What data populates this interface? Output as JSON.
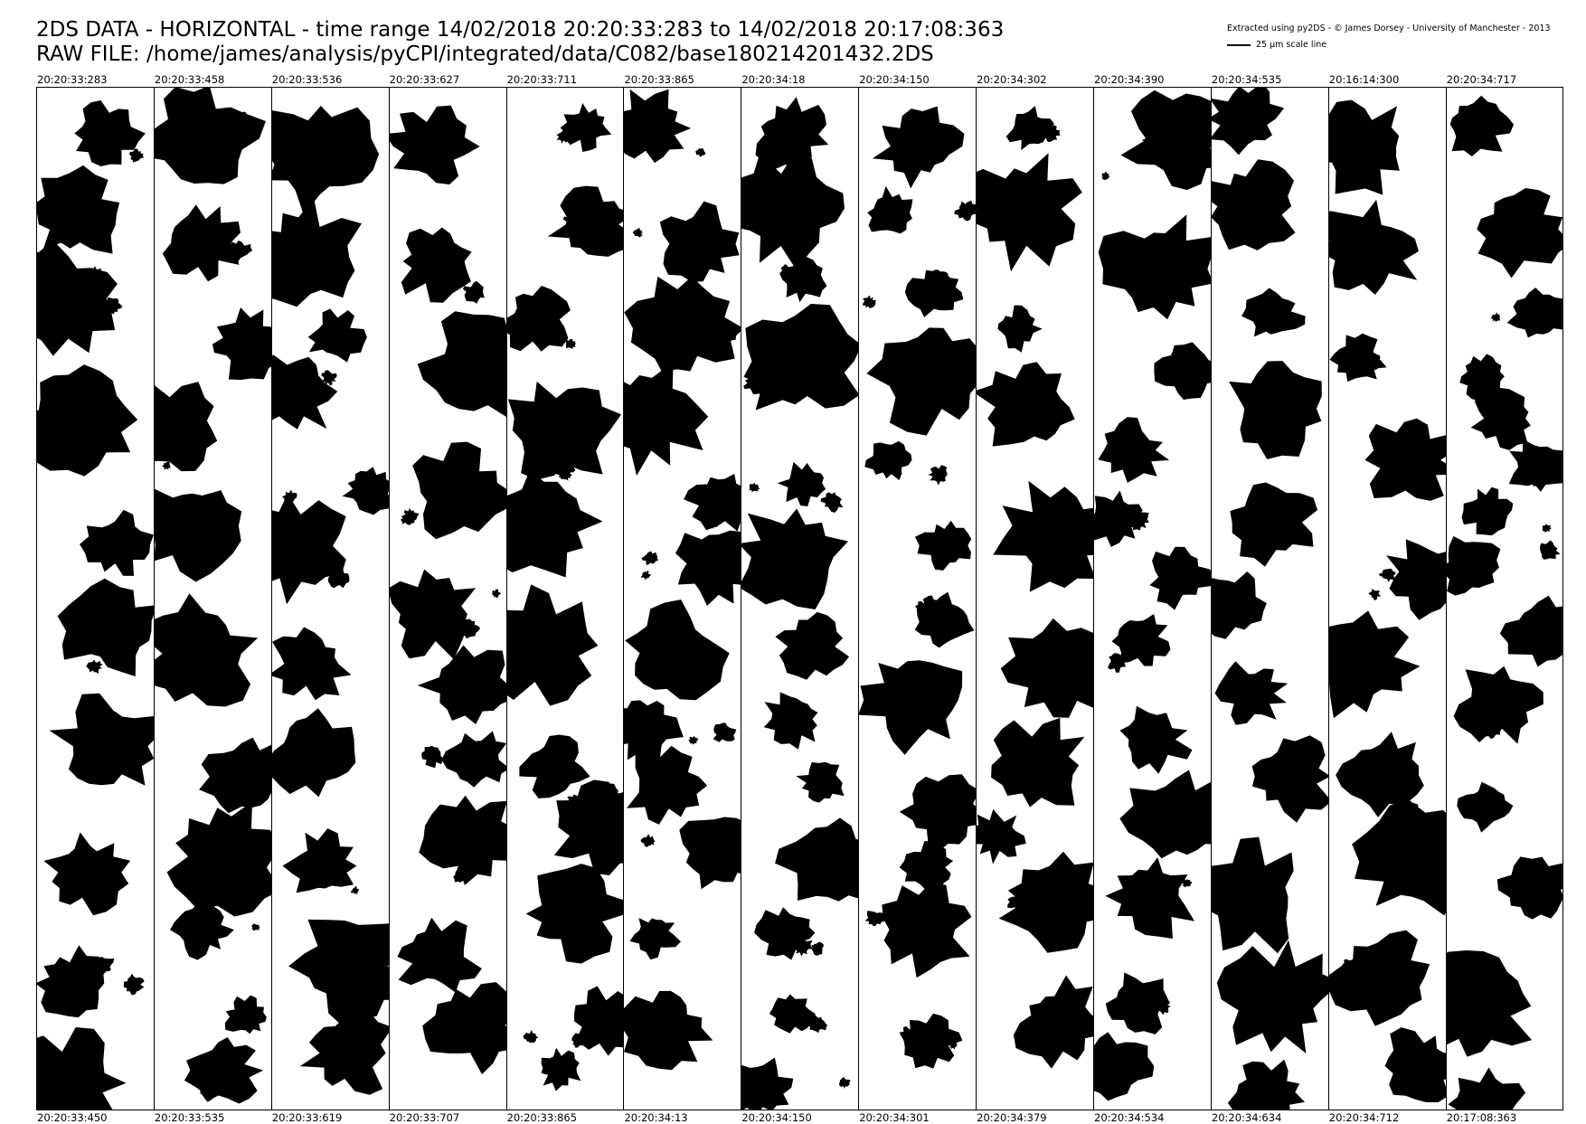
{
  "header": {
    "line1": "2DS DATA - HORIZONTAL - time range 14/02/2018 20:20:33:283 to 14/02/2018 20:17:08:363",
    "line2": "RAW FILE: /home/james/analysis/pyCPI/integrated/data/C082/base180214201432.2DS",
    "credit": "Extracted using py2DS - © James Dorsey - University of Manchester - 2013",
    "scale_label": "25 μm scale line"
  },
  "strips": [
    {
      "start": "20:20:33:283",
      "end": "20:20:33:450"
    },
    {
      "start": "20:20:33:458",
      "end": "20:20:33:535"
    },
    {
      "start": "20:20:33:536",
      "end": "20:20:33:619"
    },
    {
      "start": "20:20:33:627",
      "end": "20:20:33:707"
    },
    {
      "start": "20:20:33:711",
      "end": "20:20:33:865"
    },
    {
      "start": "20:20:33:865",
      "end": "20:20:34:13"
    },
    {
      "start": "20:20:34:18",
      "end": "20:20:34:150"
    },
    {
      "start": "20:20:34:150",
      "end": "20:20:34:301"
    },
    {
      "start": "20:20:34:302",
      "end": "20:20:34:379"
    },
    {
      "start": "20:20:34:390",
      "end": "20:20:34:534"
    },
    {
      "start": "20:20:34:535",
      "end": "20:20:34:634"
    },
    {
      "start": "20:16:14:300",
      "end": "20:20:34:712"
    },
    {
      "start": "20:20:34:717",
      "end": "20:17:08:363"
    }
  ],
  "colors": {
    "particle": "#000000",
    "background": "#ffffff"
  }
}
